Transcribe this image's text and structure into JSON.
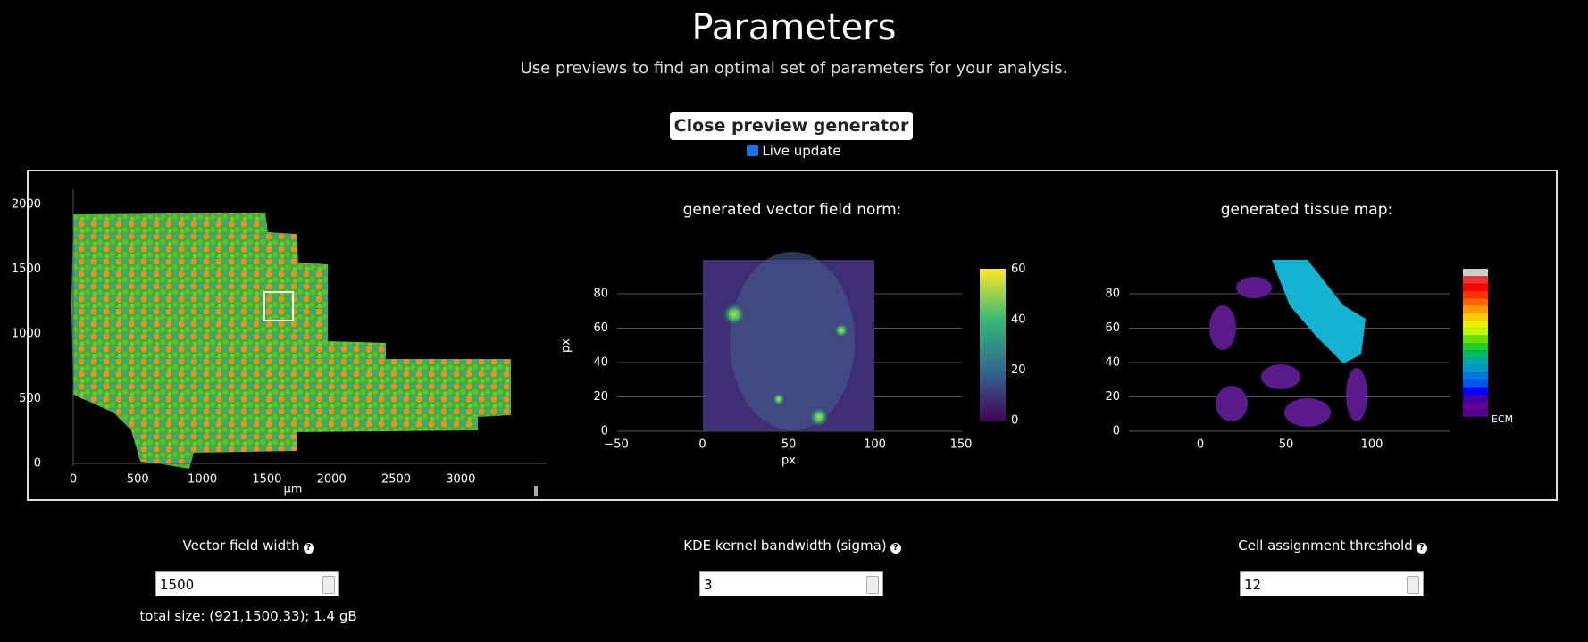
{
  "header": {
    "title": "Parameters",
    "subtitle": "Use previews to find an optimal set of parameters for your analysis.",
    "button": "Close preview generator",
    "checkbox_label": "Live update"
  },
  "panels": {
    "cells": {
      "xticks": [
        "0",
        "500",
        "1000",
        "1500",
        "2000",
        "2500",
        "3000"
      ],
      "yticks": [
        "0",
        "500",
        "1000",
        "1500",
        "2000"
      ],
      "xlabel": "μm"
    },
    "vector_field": {
      "title": "generated vector field norm:",
      "xticks": [
        "−50",
        "0",
        "50",
        "100",
        "150"
      ],
      "yticks": [
        "0",
        "20",
        "40",
        "60",
        "80"
      ],
      "xlabel": "px",
      "ylabel": "px",
      "colorbar_ticks": [
        "0",
        "20",
        "40",
        "60"
      ]
    },
    "tissue_map": {
      "title": "generated tissue map:",
      "xticks": [
        "0",
        "50",
        "100"
      ],
      "yticks": [
        "0",
        "20",
        "40",
        "60",
        "80"
      ],
      "legend_last": "ECM"
    }
  },
  "controls": [
    {
      "label": "Vector field width",
      "value": "1500",
      "note": "total size: (921,1500,33); 1.4 gB"
    },
    {
      "label": "KDE kernel bandwidth (sigma)",
      "value": "3"
    },
    {
      "label": "Cell assignment threshold",
      "value": "12"
    }
  ]
}
